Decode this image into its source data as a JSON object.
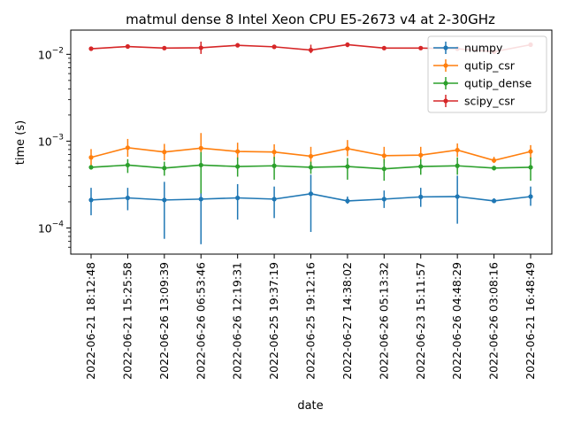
{
  "chart_data": {
    "type": "line",
    "title": "matmul dense 8 Intel Xeon CPU E5-2673 v4 at 2-30GHz",
    "xlabel": "date",
    "ylabel": "time (s)",
    "yscale": "log",
    "ylim": [
      5e-05,
      0.019
    ],
    "yticks": [
      {
        "value": 0.0001,
        "label": "10",
        "exp": "−4"
      },
      {
        "value": 0.001,
        "label": "10",
        "exp": "−3"
      },
      {
        "value": 0.01,
        "label": "10",
        "exp": "−2"
      }
    ],
    "categories": [
      "2022-06-21 18:12:48",
      "2022-06-21 15:25:58",
      "2022-06-26 13:09:39",
      "2022-06-26 06:53:46",
      "2022-06-26 12:19:31",
      "2022-06-25 19:37:19",
      "2022-06-25 19:12:16",
      "2022-06-27 14:38:02",
      "2022-06-26 05:13:32",
      "2022-06-23 15:11:57",
      "2022-06-26 04:48:29",
      "2022-06-26 03:08:16",
      "2022-06-21 16:48:49"
    ],
    "legend_position": "top-right",
    "grid": false,
    "series": [
      {
        "name": "numpy",
        "color": "#1f77b4",
        "values": [
          0.00021,
          0.000222,
          0.00021,
          0.000215,
          0.000222,
          0.000215,
          0.000248,
          0.000205,
          0.000215,
          0.000228,
          0.00023,
          0.000205,
          0.00023
        ],
        "err_low": [
          0.00014,
          0.00016,
          7.5e-05,
          6.5e-05,
          0.000125,
          0.00013,
          9e-05,
          0.00019,
          0.00017,
          0.000175,
          0.000112,
          0.000195,
          0.00018
        ],
        "err_high": [
          0.00029,
          0.00029,
          0.00034,
          0.00036,
          0.00032,
          0.0003,
          0.00041,
          0.00023,
          0.00027,
          0.00029,
          0.0004,
          0.00022,
          0.0003
        ]
      },
      {
        "name": "qutip_csr",
        "color": "#ff7f0e",
        "values": [
          0.00065,
          0.00084,
          0.00075,
          0.00083,
          0.00076,
          0.00075,
          0.00067,
          0.00082,
          0.00068,
          0.00069,
          0.00079,
          0.0006,
          0.00076
        ],
        "err_low": [
          0.00052,
          0.00066,
          0.0006,
          0.00062,
          0.00061,
          0.00062,
          0.00052,
          0.00067,
          0.00056,
          0.00058,
          0.00066,
          0.00056,
          0.00063
        ],
        "err_high": [
          0.00081,
          0.00106,
          0.00093,
          0.00124,
          0.00096,
          0.00092,
          0.00086,
          0.00103,
          0.00086,
          0.00086,
          0.00094,
          0.00066,
          0.0009
        ]
      },
      {
        "name": "qutip_dense",
        "color": "#2ca02c",
        "values": [
          0.0005,
          0.00053,
          0.00049,
          0.00053,
          0.00051,
          0.00052,
          0.0005,
          0.00051,
          0.00048,
          0.00051,
          0.00052,
          0.00049,
          0.0005
        ],
        "err_low": [
          0.00047,
          0.00043,
          0.0004,
          0.00025,
          0.00039,
          0.00036,
          0.00042,
          0.00036,
          0.00035,
          0.00041,
          0.00041,
          0.00046,
          0.00035
        ],
        "err_high": [
          0.00053,
          0.00062,
          0.00058,
          0.00075,
          0.00065,
          0.00066,
          0.00058,
          0.00064,
          0.00062,
          0.00062,
          0.00065,
          0.00052,
          0.00065
        ]
      },
      {
        "name": "scipy_csr",
        "color": "#d62728",
        "values": [
          0.0116,
          0.0123,
          0.0118,
          0.0119,
          0.0127,
          0.0122,
          0.0112,
          0.0129,
          0.0118,
          0.0118,
          0.0116,
          0.0107,
          0.0129
        ],
        "err_low": [
          0.0113,
          0.0117,
          0.0114,
          0.0101,
          0.0121,
          0.0118,
          0.0103,
          0.0121,
          0.0114,
          0.0114,
          0.0113,
          0.0104,
          0.0125
        ],
        "err_high": [
          0.0119,
          0.0129,
          0.0122,
          0.014,
          0.0134,
          0.0126,
          0.0129,
          0.0137,
          0.0122,
          0.0122,
          0.0119,
          0.011,
          0.0133
        ]
      }
    ]
  }
}
